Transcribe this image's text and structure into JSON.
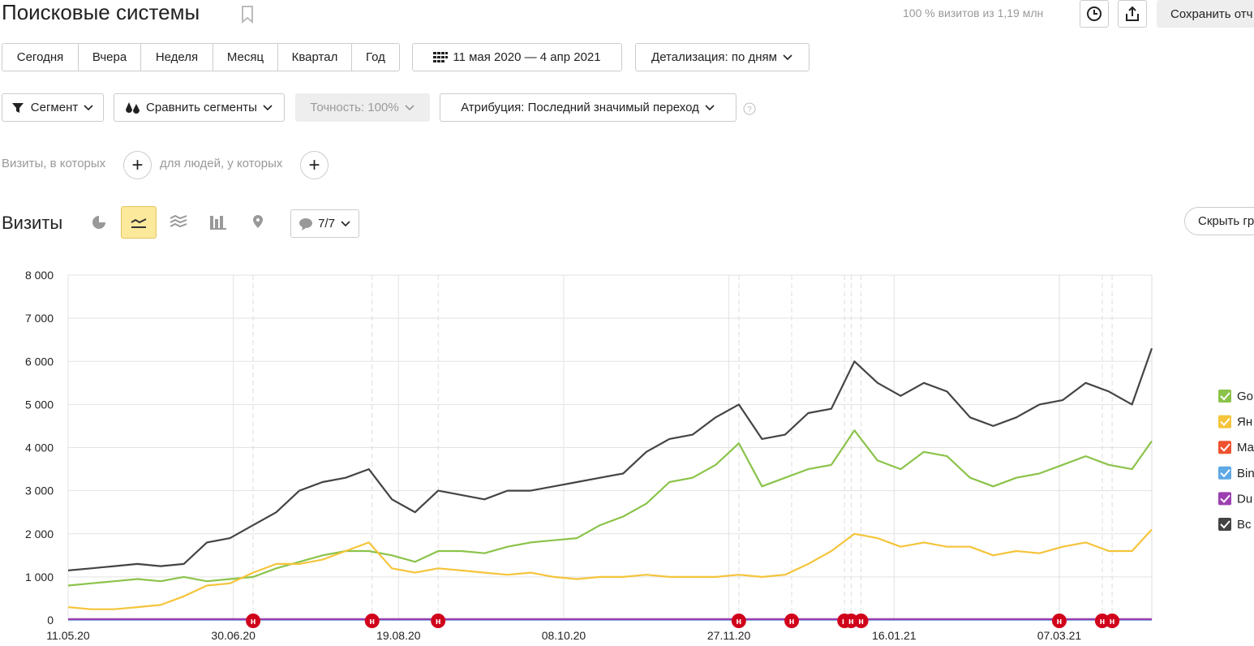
{
  "header": {
    "title": "Поисковые системы",
    "stats": "100 % визитов из 1,19 млн",
    "save": "Сохранить отч"
  },
  "periods": [
    "Сегодня",
    "Вчера",
    "Неделя",
    "Месяц",
    "Квартал",
    "Год"
  ],
  "date_range": "11 мая 2020 — 4 апр 2021",
  "detail": "Детализация: по дням",
  "filters": {
    "segment": "Сегмент",
    "compare": "Сравнить сегменты",
    "accuracy": "Точность: 100%",
    "attribution": "Атрибуция: Последний значимый переход"
  },
  "conditions": {
    "visits": "Визиты, в которых",
    "people": "для людей, у которых"
  },
  "report": {
    "title": "Визиты",
    "notes_count": "7/7",
    "hide": "Скрыть гр"
  },
  "chart_data": {
    "type": "line",
    "x": [
      0,
      7,
      14,
      21,
      28,
      35,
      42,
      49,
      56,
      63,
      70,
      77,
      84,
      91,
      98,
      105,
      112,
      119,
      126,
      133,
      140,
      147,
      154,
      161,
      168,
      175,
      182,
      189,
      196,
      203,
      210,
      217,
      224,
      231,
      238,
      245,
      252,
      259,
      266,
      273,
      280,
      287,
      294,
      301,
      308,
      315,
      322,
      328
    ],
    "xlim": [
      0,
      328
    ],
    "xticks": [
      {
        "value": 0,
        "label": "11.05.20"
      },
      {
        "value": 50,
        "label": "30.06.20"
      },
      {
        "value": 100,
        "label": "19.08.20"
      },
      {
        "value": 150,
        "label": "08.10.20"
      },
      {
        "value": 200,
        "label": "27.11.20"
      },
      {
        "value": 250,
        "label": "16.01.21"
      },
      {
        "value": 300,
        "label": "07.03.21"
      }
    ],
    "ylim": [
      0,
      8000
    ],
    "yticks": [
      0,
      {
        "value": 1000,
        "label": "1 000"
      },
      {
        "value": 2000,
        "label": "2 000"
      },
      {
        "value": 3000,
        "label": "3 000"
      },
      {
        "value": 4000,
        "label": "4 000"
      },
      {
        "value": 5000,
        "label": "5 000"
      },
      {
        "value": 6000,
        "label": "6 000"
      },
      {
        "value": 7000,
        "label": "7 000"
      },
      {
        "value": 8000,
        "label": "8 000"
      }
    ],
    "grid": true,
    "series": [
      {
        "name": "Go",
        "color": "#8bc34a",
        "values": [
          800,
          850,
          900,
          950,
          900,
          1000,
          900,
          950,
          1000,
          1200,
          1350,
          1500,
          1600,
          1600,
          1500,
          1350,
          1600,
          1600,
          1550,
          1700,
          1800,
          1850,
          1900,
          2200,
          2400,
          2700,
          3200,
          3300,
          3600,
          4100,
          3100,
          3300,
          3500,
          3600,
          4400,
          3700,
          3500,
          3900,
          3800,
          3300,
          3100,
          3300,
          3400,
          3600,
          3800,
          3600,
          3500,
          4150
        ]
      },
      {
        "name": "Ян",
        "color": "#f5c43a",
        "values": [
          300,
          250,
          250,
          300,
          350,
          550,
          800,
          850,
          1100,
          1300,
          1300,
          1400,
          1600,
          1800,
          1200,
          1100,
          1200,
          1150,
          1100,
          1050,
          1100,
          1000,
          950,
          1000,
          1000,
          1050,
          1000,
          1000,
          1000,
          1050,
          1000,
          1050,
          1300,
          1600,
          2000,
          1900,
          1700,
          1800,
          1700,
          1700,
          1500,
          1600,
          1550,
          1700,
          1800,
          1600,
          1600,
          2100
        ]
      },
      {
        "name": "Ма",
        "color": "#f0522f",
        "values": [
          10,
          10,
          10,
          10,
          10,
          10,
          10,
          10,
          10,
          10,
          10,
          10,
          10,
          10,
          10,
          10,
          10,
          10,
          10,
          10,
          10,
          10,
          10,
          10,
          10,
          10,
          10,
          10,
          10,
          10,
          10,
          10,
          10,
          10,
          10,
          10,
          10,
          10,
          10,
          10,
          10,
          10,
          10,
          10,
          10,
          10,
          10,
          10
        ]
      },
      {
        "name": "Bin",
        "color": "#5ea8e6",
        "values": [
          5,
          5,
          5,
          5,
          5,
          5,
          5,
          5,
          5,
          5,
          5,
          5,
          5,
          5,
          5,
          5,
          5,
          5,
          5,
          5,
          5,
          5,
          5,
          5,
          5,
          5,
          5,
          5,
          5,
          5,
          5,
          5,
          5,
          5,
          5,
          5,
          5,
          5,
          5,
          5,
          5,
          5,
          5,
          5,
          5,
          5,
          5,
          5
        ]
      },
      {
        "name": "Du",
        "color": "#9c3fb0",
        "values": [
          20,
          20,
          20,
          20,
          20,
          20,
          20,
          20,
          20,
          20,
          20,
          20,
          20,
          20,
          20,
          20,
          20,
          20,
          20,
          20,
          20,
          20,
          20,
          20,
          20,
          20,
          20,
          20,
          20,
          20,
          20,
          20,
          20,
          20,
          20,
          20,
          20,
          20,
          20,
          20,
          20,
          20,
          20,
          20,
          20,
          20,
          20,
          20
        ]
      },
      {
        "name": "Вс",
        "color": "#444444",
        "values": [
          1150,
          1200,
          1250,
          1300,
          1250,
          1300,
          1800,
          1900,
          2200,
          2500,
          3000,
          3200,
          3300,
          3500,
          2800,
          2500,
          3000,
          2900,
          2800,
          3000,
          3000,
          3100,
          3200,
          3300,
          3400,
          3900,
          4200,
          4300,
          4700,
          5000,
          4200,
          4300,
          4800,
          4900,
          6000,
          5500,
          5200,
          5500,
          5300,
          4700,
          4500,
          4700,
          5000,
          5100,
          5500,
          5300,
          5000,
          6300
        ]
      }
    ],
    "notes": [
      {
        "x": 56,
        "label": "н"
      },
      {
        "x": 92,
        "label": "н"
      },
      {
        "x": 112,
        "label": "н"
      },
      {
        "x": 203,
        "label": "н"
      },
      {
        "x": 219,
        "label": "н"
      },
      {
        "x": 235,
        "label": "н"
      },
      {
        "x": 237,
        "label": "н"
      },
      {
        "x": 240,
        "label": "н"
      },
      {
        "x": 300,
        "label": "н"
      },
      {
        "x": 313,
        "label": "н"
      },
      {
        "x": 316,
        "label": "н"
      }
    ]
  }
}
